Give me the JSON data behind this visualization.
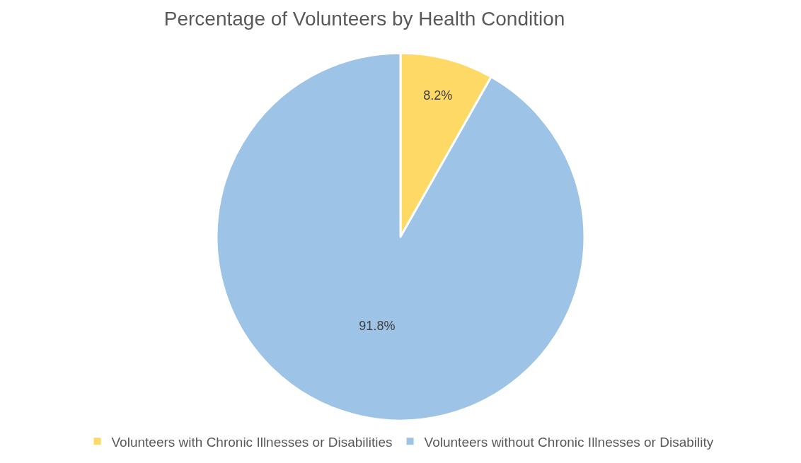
{
  "chart_data": {
    "type": "pie",
    "title": "Percentage of Volunteers by Health Condition",
    "categories": [
      "Volunteers with Chronic Illnesses or Disabilities",
      "Volunteers without Chronic Illnesses or Disability"
    ],
    "values": [
      8.2,
      91.8
    ],
    "colors": [
      "#ffd966",
      "#9dc3e6"
    ],
    "value_labels": [
      "8.2%",
      "91.8%"
    ],
    "legend": "bottom"
  }
}
